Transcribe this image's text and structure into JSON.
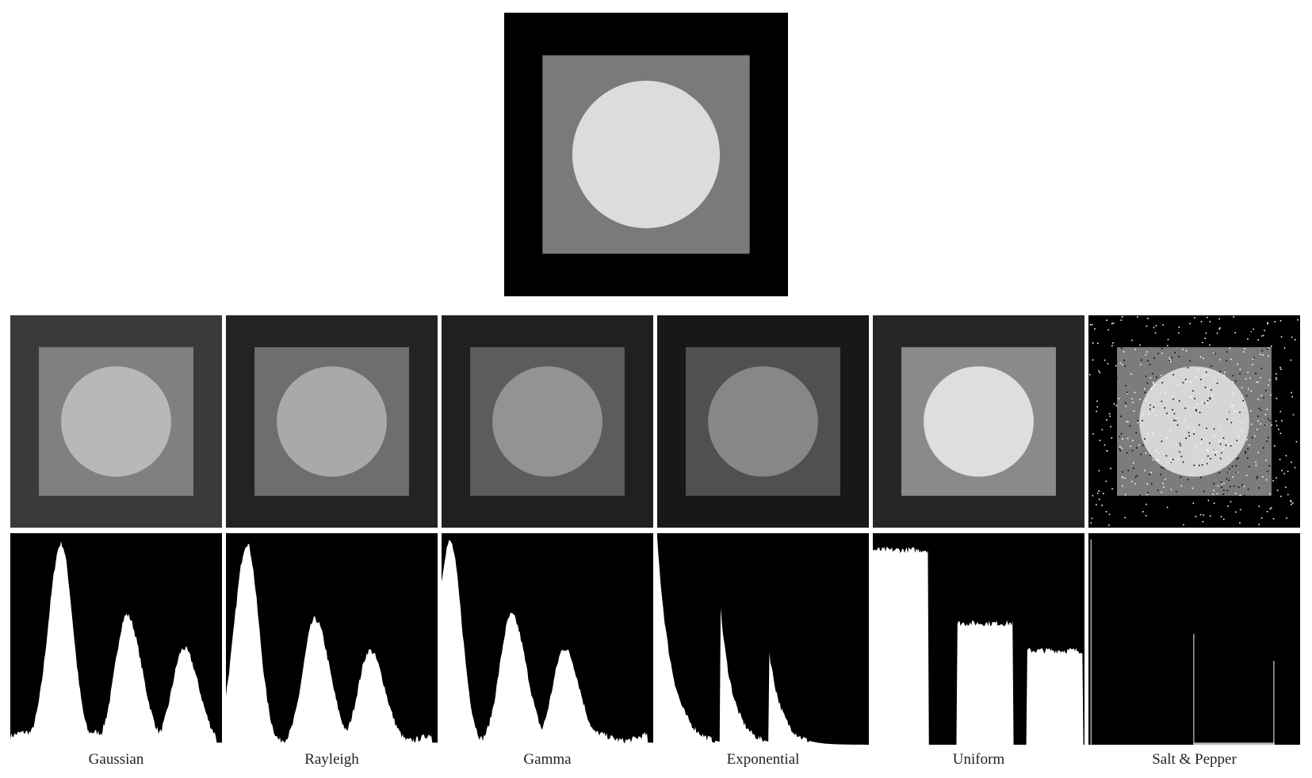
{
  "original_image": {
    "colors": {
      "background": "#000000",
      "square": "#7a7a7a",
      "circle": "#dcdcdc"
    }
  },
  "panels": [
    {
      "label": "Gaussian",
      "colors": {
        "border": "#3a3a3a",
        "square": "#808080",
        "circle": "#b8b8b8"
      },
      "histogram": {
        "kind": "three-peaks",
        "peaks": [
          0.24,
          0.55,
          0.82
        ],
        "heights": [
          0.96,
          0.62,
          0.46
        ]
      }
    },
    {
      "label": "Rayleigh",
      "colors": {
        "border": "#232323",
        "square": "#6e6e6e",
        "circle": "#a9a9a9"
      },
      "histogram": {
        "kind": "three-peaks",
        "peaks": [
          0.1,
          0.42,
          0.68
        ],
        "heights": [
          0.96,
          0.6,
          0.45
        ]
      }
    },
    {
      "label": "Gamma",
      "colors": {
        "border": "#202020",
        "square": "#5c5c5c",
        "circle": "#939393"
      },
      "histogram": {
        "kind": "three-peaks",
        "peaks": [
          0.04,
          0.33,
          0.58
        ],
        "heights": [
          0.97,
          0.62,
          0.46
        ]
      }
    },
    {
      "label": "Exponential",
      "colors": {
        "border": "#181818",
        "square": "#505050",
        "circle": "#878787"
      },
      "histogram": {
        "kind": "decay",
        "peaks": [
          0.0,
          0.3,
          0.53
        ],
        "heights": [
          0.98,
          0.64,
          0.44
        ]
      }
    },
    {
      "label": "Uniform",
      "colors": {
        "border": "#262626",
        "square": "#8a8a8a",
        "circle": "#dedede"
      },
      "histogram": {
        "kind": "uniform",
        "bands": [
          [
            0.0,
            0.26,
            0.93
          ],
          [
            0.4,
            0.66,
            0.58
          ],
          [
            0.73,
            0.99,
            0.45
          ]
        ]
      }
    },
    {
      "label": "Salt & Pepper",
      "colors": {
        "border": "#000000",
        "square": "#7c7c7c",
        "circle": "#d6d6d6"
      },
      "histogram": {
        "kind": "spikes",
        "spikes": [
          [
            0.0,
            0.98
          ],
          [
            0.5,
            0.53
          ],
          [
            0.89,
            0.4
          ]
        ]
      }
    }
  ]
}
